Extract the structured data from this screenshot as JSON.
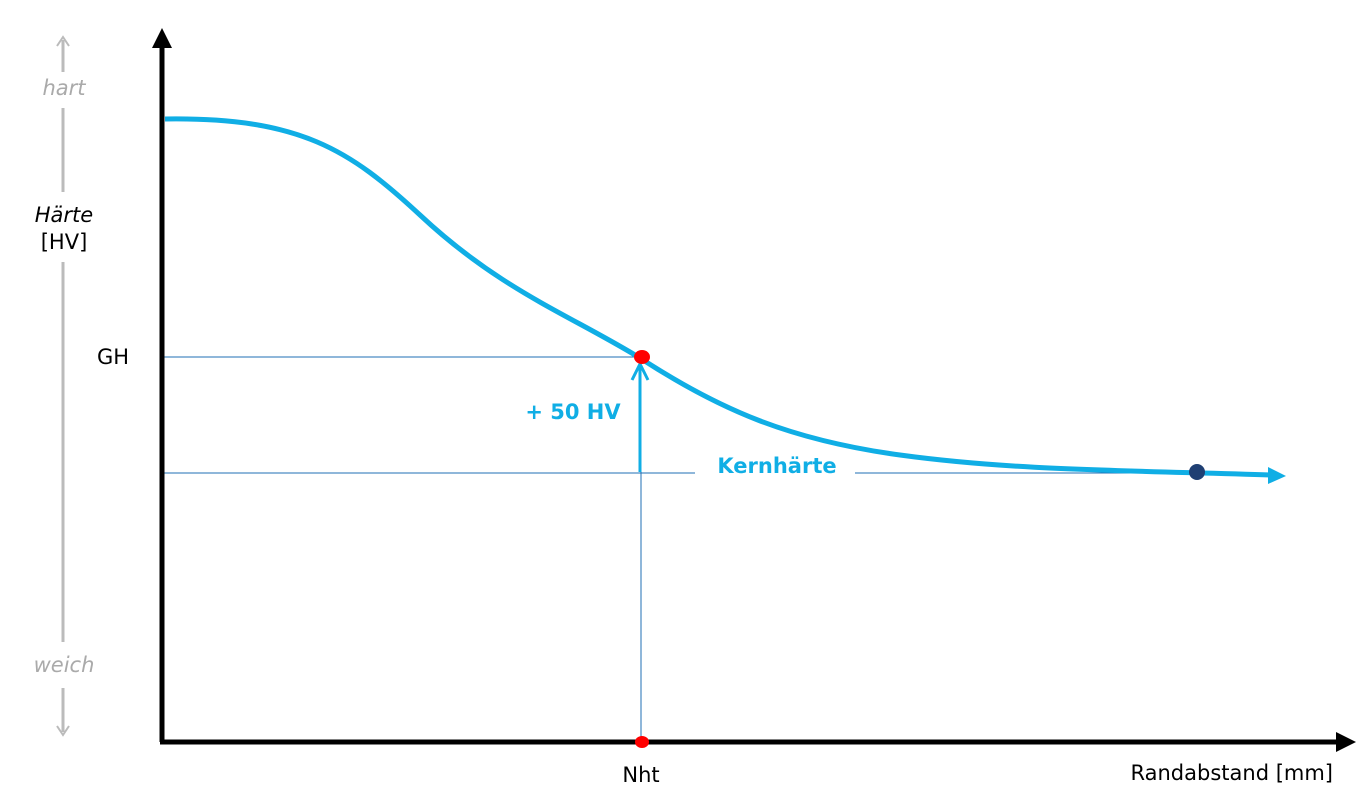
{
  "y_axis": {
    "top": "hart",
    "label": "Härte",
    "unit": "[HV]",
    "bottom": "weich"
  },
  "levels": {
    "gh": "GH",
    "offset": "+ 50 HV",
    "core": "Kernhärte"
  },
  "x_axis": {
    "point": "Nht",
    "label": "Randabstand [mm]"
  }
}
